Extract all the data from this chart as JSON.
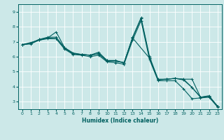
{
  "xlabel": "Humidex (Indice chaleur)",
  "bg_color": "#cce8e8",
  "line_color": "#006060",
  "grid_color": "#ffffff",
  "xlim": [
    -0.5,
    23.5
  ],
  "ylim": [
    2.5,
    9.5
  ],
  "xticks": [
    0,
    1,
    2,
    3,
    4,
    5,
    6,
    7,
    8,
    9,
    10,
    11,
    12,
    13,
    14,
    15,
    16,
    17,
    18,
    19,
    20,
    21,
    22,
    23
  ],
  "yticks": [
    3,
    4,
    5,
    6,
    7,
    8,
    9
  ],
  "lines": [
    {
      "x": [
        0,
        1,
        2,
        3,
        4,
        5,
        6,
        7,
        8,
        9,
        10,
        11,
        12,
        13,
        14,
        15,
        16,
        17,
        18,
        19,
        20,
        21,
        22,
        23
      ],
      "y": [
        6.8,
        6.9,
        7.15,
        7.25,
        7.2,
        6.55,
        6.2,
        6.15,
        6.1,
        6.3,
        5.75,
        5.75,
        5.6,
        7.3,
        8.6,
        6.0,
        4.5,
        4.5,
        4.55,
        4.5,
        3.95,
        3.3,
        3.35,
        2.7
      ]
    },
    {
      "x": [
        0,
        1,
        2,
        3,
        4,
        5,
        6,
        7,
        8,
        9,
        10,
        11,
        12,
        13,
        15,
        16,
        17,
        18,
        19,
        20,
        21,
        22,
        23
      ],
      "y": [
        6.8,
        6.9,
        7.15,
        7.3,
        7.3,
        6.6,
        6.2,
        6.15,
        6.1,
        6.2,
        5.75,
        5.7,
        5.6,
        7.25,
        5.9,
        4.45,
        4.5,
        4.55,
        4.5,
        4.5,
        3.3,
        3.4,
        2.7
      ]
    },
    {
      "x": [
        0,
        2,
        3,
        4,
        5,
        6,
        7,
        8,
        9,
        10,
        11,
        12,
        13,
        14,
        15,
        16,
        17,
        18,
        19,
        20,
        21,
        22,
        23
      ],
      "y": [
        6.8,
        7.1,
        7.25,
        7.65,
        6.6,
        6.25,
        6.15,
        6.1,
        6.2,
        5.7,
        5.7,
        5.6,
        7.25,
        8.55,
        5.9,
        4.45,
        4.5,
        4.55,
        4.45,
        3.95,
        3.3,
        3.35,
        2.7
      ]
    },
    {
      "x": [
        0,
        1,
        2,
        3,
        4,
        5,
        6,
        7,
        8,
        9,
        10,
        11,
        12,
        13,
        14,
        15,
        16,
        17,
        18,
        19,
        20,
        21,
        22,
        23
      ],
      "y": [
        6.8,
        6.85,
        7.1,
        7.2,
        7.2,
        6.5,
        6.15,
        6.1,
        6.0,
        6.1,
        5.65,
        5.6,
        5.5,
        7.1,
        8.4,
        5.8,
        4.4,
        4.4,
        4.4,
        3.85,
        3.2,
        3.25,
        3.3,
        2.65
      ]
    }
  ]
}
